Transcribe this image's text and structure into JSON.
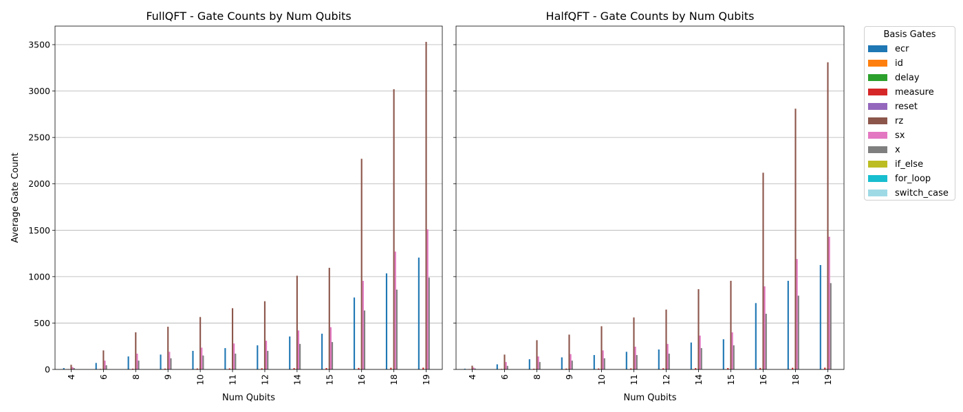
{
  "colors": {
    "ecr": "#1f77b4",
    "id": "#ff7f0e",
    "delay": "#2ca02c",
    "measure": "#d62728",
    "reset": "#9467bd",
    "rz": "#8c564b",
    "sx": "#e377c2",
    "x": "#7f7f7f",
    "if_else": "#bcbd22",
    "for_loop": "#17becf",
    "switch_case": "#9edae5",
    "grid": "#b0b0b0"
  },
  "legend": {
    "title": "Basis Gates",
    "items": [
      "ecr",
      "id",
      "delay",
      "measure",
      "reset",
      "rz",
      "sx",
      "x",
      "if_else",
      "for_loop",
      "switch_case"
    ]
  },
  "chart_data": [
    {
      "type": "bar",
      "title": "FullQFT - Gate Counts by Num Qubits",
      "xlabel": "Num Qubits",
      "ylabel": "Average Gate Count",
      "ylim": [
        0,
        3700
      ],
      "yticks": [
        0,
        500,
        1000,
        1500,
        2000,
        2500,
        3000,
        3500
      ],
      "grid": "y",
      "categories": [
        "4",
        "6",
        "8",
        "9",
        "10",
        "11",
        "12",
        "14",
        "15",
        "16",
        "18",
        "19"
      ],
      "series": [
        {
          "name": "ecr",
          "values": [
            15,
            70,
            140,
            160,
            200,
            230,
            260,
            355,
            385,
            775,
            1035,
            1205
          ]
        },
        {
          "name": "id",
          "values": [
            0,
            0,
            0,
            0,
            0,
            0,
            0,
            0,
            0,
            0,
            0,
            0
          ]
        },
        {
          "name": "delay",
          "values": [
            0,
            0,
            0,
            0,
            0,
            0,
            0,
            0,
            0,
            0,
            0,
            0
          ]
        },
        {
          "name": "measure",
          "values": [
            4,
            6,
            8,
            9,
            10,
            11,
            12,
            14,
            15,
            16,
            18,
            19
          ]
        },
        {
          "name": "reset",
          "values": [
            0,
            0,
            0,
            0,
            0,
            0,
            0,
            0,
            0,
            0,
            0,
            0
          ]
        },
        {
          "name": "rz",
          "values": [
            50,
            205,
            400,
            460,
            565,
            660,
            735,
            1010,
            1095,
            2270,
            3020,
            3530
          ]
        },
        {
          "name": "sx",
          "values": [
            25,
            95,
            170,
            190,
            235,
            280,
            310,
            420,
            455,
            955,
            1270,
            1510
          ]
        },
        {
          "name": "x",
          "values": [
            15,
            45,
            95,
            120,
            150,
            170,
            200,
            275,
            295,
            635,
            860,
            990
          ]
        },
        {
          "name": "if_else",
          "values": [
            0,
            0,
            0,
            0,
            0,
            0,
            0,
            0,
            0,
            0,
            0,
            0
          ]
        },
        {
          "name": "for_loop",
          "values": [
            0,
            0,
            0,
            0,
            0,
            0,
            0,
            0,
            0,
            0,
            0,
            0
          ]
        },
        {
          "name": "switch_case",
          "values": [
            0,
            0,
            0,
            0,
            0,
            0,
            0,
            0,
            0,
            0,
            0,
            0
          ]
        }
      ]
    },
    {
      "type": "bar",
      "title": "HalfQFT - Gate Counts by Num Qubits",
      "xlabel": "Num Qubits",
      "ylabel": "",
      "ylim": [
        0,
        3700
      ],
      "yticks": [
        0,
        500,
        1000,
        1500,
        2000,
        2500,
        3000,
        3500
      ],
      "grid": "y",
      "categories": [
        "4",
        "6",
        "8",
        "9",
        "10",
        "11",
        "12",
        "14",
        "15",
        "16",
        "18",
        "19"
      ],
      "series": [
        {
          "name": "ecr",
          "values": [
            8,
            55,
            110,
            130,
            155,
            190,
            215,
            290,
            325,
            715,
            955,
            1125
          ]
        },
        {
          "name": "id",
          "values": [
            0,
            0,
            0,
            0,
            0,
            0,
            0,
            0,
            0,
            0,
            0,
            0
          ]
        },
        {
          "name": "delay",
          "values": [
            0,
            0,
            0,
            0,
            0,
            0,
            0,
            0,
            0,
            0,
            0,
            0
          ]
        },
        {
          "name": "measure",
          "values": [
            4,
            6,
            8,
            9,
            10,
            11,
            12,
            14,
            15,
            16,
            18,
            19
          ]
        },
        {
          "name": "reset",
          "values": [
            0,
            0,
            0,
            0,
            0,
            0,
            0,
            0,
            0,
            0,
            0,
            0
          ]
        },
        {
          "name": "rz",
          "values": [
            40,
            160,
            315,
            375,
            465,
            560,
            645,
            865,
            955,
            2120,
            2810,
            3310
          ]
        },
        {
          "name": "sx",
          "values": [
            20,
            80,
            140,
            165,
            205,
            245,
            275,
            365,
            400,
            895,
            1190,
            1430
          ]
        },
        {
          "name": "x",
          "values": [
            10,
            38,
            80,
            95,
            120,
            155,
            170,
            230,
            260,
            600,
            795,
            930
          ]
        },
        {
          "name": "if_else",
          "values": [
            0,
            0,
            0,
            0,
            0,
            0,
            0,
            0,
            0,
            0,
            0,
            0
          ]
        },
        {
          "name": "for_loop",
          "values": [
            0,
            0,
            0,
            0,
            0,
            0,
            0,
            0,
            0,
            0,
            0,
            0
          ]
        },
        {
          "name": "switch_case",
          "values": [
            0,
            0,
            0,
            0,
            0,
            0,
            0,
            0,
            0,
            0,
            0,
            0
          ]
        }
      ]
    }
  ]
}
